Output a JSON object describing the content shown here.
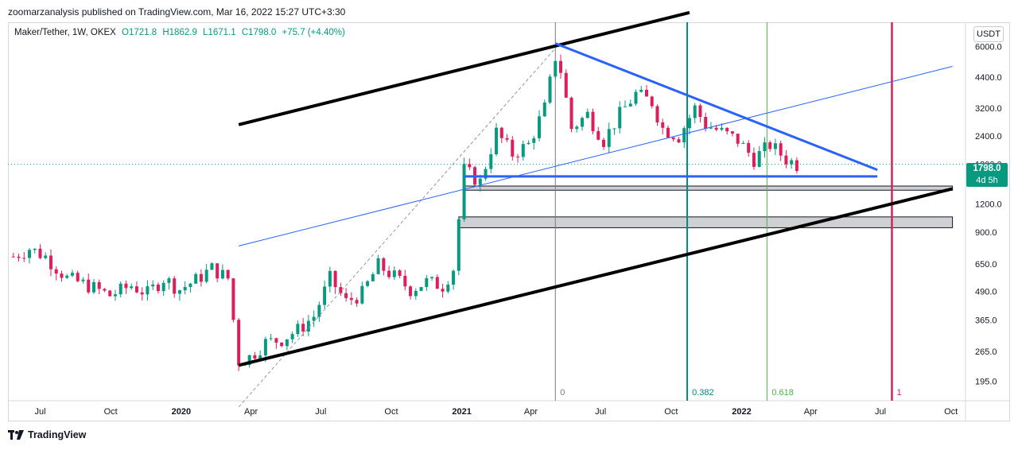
{
  "header": {
    "published": "zoomarzanalysis published on TradingView.com, Mar 16, 2022 15:27 UTC+3:30"
  },
  "legend": {
    "symbol": "Maker/Tether, 1W, OKEX",
    "open": "O1721.8",
    "high": "H1862.9",
    "low": "L1671.1",
    "close": "C1798.0",
    "change": "+75.7 (+4.40%)"
  },
  "currency": "USDT",
  "price_tag": {
    "value": "1798.0",
    "countdown": "4d 5h"
  },
  "brand": "TradingView",
  "colors": {
    "up": "#089981",
    "down": "#dd1e5a",
    "trend": "#2962ff",
    "fib_0": "#787b86",
    "fib_382": "#00897b",
    "fib_618": "#4caf50",
    "fib_1": "#dd1e5a"
  },
  "chart_data": {
    "type": "candlestick",
    "scale": "log",
    "timeframe": "1W",
    "y_ticks": [
      "6000.0",
      "4400.0",
      "3200.0",
      "2400.0",
      "1800.0",
      "1200.0",
      "900.0",
      "650.0",
      "490.0",
      "365.0",
      "265.0",
      "195.0"
    ],
    "x_ticks": [
      {
        "label": "Jul",
        "date": "2019-07"
      },
      {
        "label": "Oct",
        "date": "2019-10"
      },
      {
        "label": "2020",
        "date": "2020-01",
        "bold": true
      },
      {
        "label": "Apr",
        "date": "2020-04"
      },
      {
        "label": "Jul",
        "date": "2020-07"
      },
      {
        "label": "Oct",
        "date": "2020-10"
      },
      {
        "label": "2021",
        "date": "2021-01",
        "bold": true
      },
      {
        "label": "Apr",
        "date": "2021-04"
      },
      {
        "label": "Jul",
        "date": "2021-07"
      },
      {
        "label": "Oct",
        "date": "2021-10"
      },
      {
        "label": "2022",
        "date": "2022-01",
        "bold": true
      },
      {
        "label": "Apr",
        "date": "2022-04"
      },
      {
        "label": "Jul",
        "date": "2022-07"
      },
      {
        "label": "Oct",
        "date": "2022-10"
      }
    ],
    "close_path": [
      [
        "2019-05-27",
        700
      ],
      [
        "2019-06-17",
        760
      ],
      [
        "2019-07-08",
        700
      ],
      [
        "2019-08-05",
        560
      ],
      [
        "2019-09-02",
        520
      ],
      [
        "2019-09-30",
        470
      ],
      [
        "2019-10-28",
        520
      ],
      [
        "2019-11-18",
        480
      ],
      [
        "2019-12-09",
        560
      ],
      [
        "2019-12-30",
        500
      ],
      [
        "2020-01-20",
        550
      ],
      [
        "2020-02-10",
        620
      ],
      [
        "2020-03-02",
        560
      ],
      [
        "2020-03-16",
        240
      ],
      [
        "2020-03-30",
        250
      ],
      [
        "2020-04-20",
        290
      ],
      [
        "2020-05-11",
        300
      ],
      [
        "2020-06-01",
        330
      ],
      [
        "2020-06-22",
        380
      ],
      [
        "2020-07-13",
        560
      ],
      [
        "2020-08-03",
        440
      ],
      [
        "2020-08-24",
        480
      ],
      [
        "2020-09-14",
        640
      ],
      [
        "2020-10-05",
        570
      ],
      [
        "2020-10-26",
        500
      ],
      [
        "2020-11-16",
        540
      ],
      [
        "2020-12-07",
        520
      ],
      [
        "2020-12-21",
        620
      ],
      [
        "2021-01-04",
        1700
      ],
      [
        "2021-01-25",
        1500
      ],
      [
        "2021-02-15",
        2500
      ],
      [
        "2021-03-08",
        2000
      ],
      [
        "2021-03-29",
        2200
      ],
      [
        "2021-04-19",
        3200
      ],
      [
        "2021-05-03",
        5400
      ],
      [
        "2021-05-10",
        4700
      ],
      [
        "2021-05-24",
        2600
      ],
      [
        "2021-06-14",
        3000
      ],
      [
        "2021-07-05",
        2300
      ],
      [
        "2021-07-26",
        3000
      ],
      [
        "2021-08-16",
        3700
      ],
      [
        "2021-09-06",
        3400
      ],
      [
        "2021-09-20",
        2600
      ],
      [
        "2021-10-11",
        2400
      ],
      [
        "2021-11-01",
        3200
      ],
      [
        "2021-11-15",
        2700
      ],
      [
        "2021-12-06",
        2500
      ],
      [
        "2021-12-27",
        2300
      ],
      [
        "2022-01-17",
        1900
      ],
      [
        "2022-02-07",
        2200
      ],
      [
        "2022-02-28",
        1900
      ],
      [
        "2022-03-14",
        1798
      ]
    ],
    "fibonacci": [
      {
        "level": "0",
        "date": "2021-05-03"
      },
      {
        "level": "0.382",
        "date": "2021-10-22"
      },
      {
        "level": "0.618",
        "date": "2022-02-03"
      },
      {
        "level": "1",
        "date": "2022-07-16"
      }
    ],
    "channel_upper": [
      [
        "2020-03-16",
        2700
      ],
      [
        "2021-10-25",
        8500
      ]
    ],
    "channel_lower": [
      [
        "2020-03-16",
        230
      ],
      [
        "2022-10-03",
        1400
      ]
    ],
    "resistance_line": [
      [
        "2021-05-03",
        6200
      ],
      [
        "2022-06-27",
        1700
      ]
    ],
    "support_line": [
      [
        "2021-01-04",
        1590
      ],
      [
        "2022-06-27",
        1590
      ]
    ],
    "diagonal_line": [
      [
        "2020-03-16",
        780
      ],
      [
        "2022-10-03",
        4900
      ]
    ],
    "dashed_line": [
      [
        "2020-03-16",
        150
      ],
      [
        "2021-05-03",
        5900
      ]
    ],
    "zones": [
      {
        "from": "2021-01-04",
        "to": "2022-10-03",
        "low": 1380,
        "high": 1440
      },
      {
        "from": "2020-12-28",
        "to": "2022-10-03",
        "low": 940,
        "high": 1050
      }
    ],
    "last_price": 1798.0
  }
}
